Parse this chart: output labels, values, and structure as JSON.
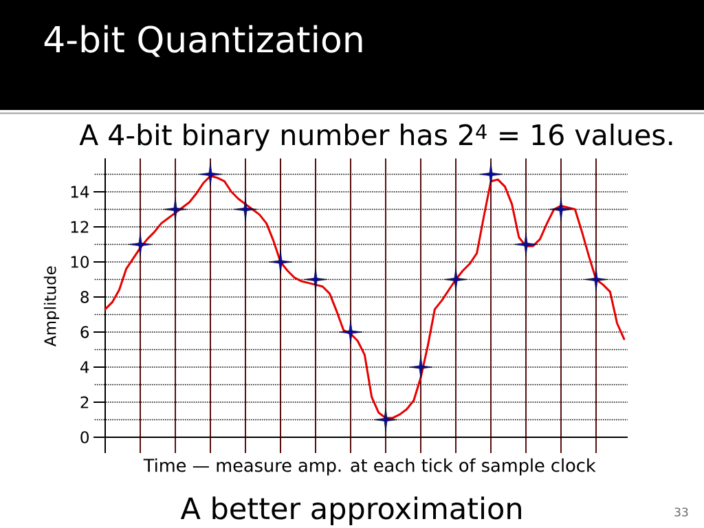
{
  "chart_data": {
    "type": "line",
    "title": "4-bit Quantization",
    "subtitle": "A 4-bit binary number has 2$^{4}$ = 16 values.",
    "xlabel": "Time — measure amp. at each tick of sample clock",
    "ylabel": "Amplitude",
    "annotations": [
      "A better approximation",
      "33"
    ],
    "categories": [
      null,
      null,
      null,
      null,
      null,
      null,
      null,
      null,
      null,
      null,
      null,
      null,
      null,
      null,
      null,
      null,
      null,
      null,
      null,
      null,
      null,
      null,
      null,
      null,
      null,
      null,
      null,
      null,
      null,
      null,
      null,
      null,
      null,
      null,
      null,
      null,
      null,
      null,
      null,
      null,
      null,
      null,
      null,
      null,
      null,
      null,
      null,
      null,
      null,
      null,
      null,
      null,
      null,
      null,
      null,
      null,
      null,
      null,
      null,
      null,
      null,
      null,
      null,
      null,
      null,
      null,
      null,
      null,
      null,
      null,
      null,
      null,
      null,
      null,
      null
    ],
    "ylim": [
      -0.9,
      15.9
    ],
    "yticks": [
      0,
      {
        "value": 1,
        "label": null
      },
      2,
      {
        "value": 3,
        "label": null
      },
      4,
      {
        "value": 5,
        "label": null
      },
      6,
      {
        "value": 7,
        "label": null
      },
      8,
      {
        "value": 9,
        "label": null
      },
      10,
      {
        "value": 11,
        "label": null
      },
      12,
      {
        "value": 13,
        "label": null
      },
      14,
      {
        "value": 15,
        "label": null
      }
    ],
    "grid": true,
    "tick_labels": "y",
    "series": [
      {
        "type": "line",
        "color": "#e60000",
        "values": [
          7.3,
          7.7,
          8.4,
          9.6,
          10.2,
          10.8,
          11.3,
          11.7,
          12.2,
          12.5,
          12.8,
          13.1,
          13.4,
          13.9,
          14.5,
          14.9,
          14.8,
          14.6,
          14.0,
          13.6,
          13.3,
          13.0,
          12.7,
          12.2,
          11.2,
          10.0,
          9.5,
          9.1,
          8.9,
          8.8,
          8.7,
          8.6,
          8.2,
          7.2,
          6.1,
          5.9,
          5.5,
          4.7,
          2.3,
          1.4,
          1.1,
          1.1,
          1.3,
          1.6,
          2.1,
          3.4,
          5.2,
          7.3,
          7.8,
          8.4,
          9.0,
          9.5,
          9.9,
          10.5,
          12.6,
          14.6,
          14.7,
          14.3,
          13.3,
          11.4,
          10.9,
          10.9,
          11.3,
          12.2,
          13.0,
          13.2,
          13.1,
          13.0,
          11.7,
          10.3,
          9.0,
          8.7,
          8.3,
          6.5,
          5.6
        ]
      },
      {
        "type": "scatter",
        "color": "#0a0aa0",
        "marker": "star",
        "values": [
          null,
          null,
          null,
          null,
          null,
          11,
          null,
          null,
          null,
          null,
          13,
          null,
          null,
          null,
          null,
          15,
          null,
          null,
          null,
          null,
          13,
          null,
          null,
          null,
          null,
          10,
          null,
          null,
          null,
          null,
          9,
          null,
          null,
          null,
          null,
          6,
          null,
          null,
          null,
          null,
          1,
          null,
          null,
          null,
          null,
          4,
          null,
          null,
          null,
          null,
          9,
          null,
          null,
          null,
          null,
          15,
          null,
          null,
          null,
          null,
          11,
          null,
          null,
          null,
          null,
          13,
          null,
          null,
          null,
          null,
          9,
          null,
          null,
          null,
          null
        ]
      }
    ]
  }
}
